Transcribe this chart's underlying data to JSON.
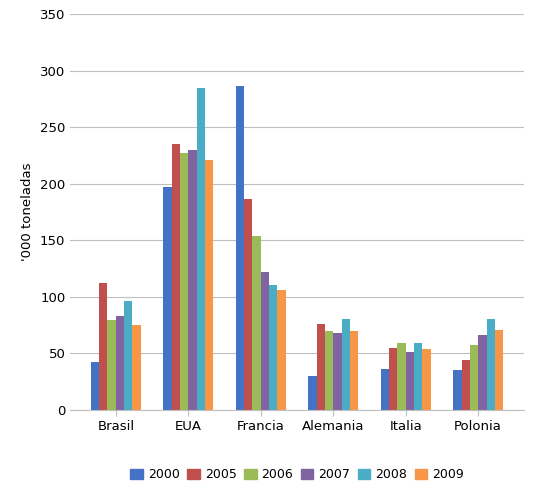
{
  "categories": [
    "Brasil",
    "EUA",
    "Francia",
    "Alemania",
    "Italia",
    "Polonia"
  ],
  "years": [
    "2000",
    "2005",
    "2006",
    "2007",
    "2008",
    "2009"
  ],
  "colors": [
    "#4472C4",
    "#C0504D",
    "#9BBB59",
    "#8064A2",
    "#4BACC6",
    "#F79646"
  ],
  "values": {
    "2000": [
      42,
      197,
      287,
      30,
      36,
      35
    ],
    "2005": [
      112,
      235,
      187,
      76,
      55,
      44
    ],
    "2006": [
      79,
      227,
      154,
      70,
      59,
      57
    ],
    "2007": [
      83,
      230,
      122,
      68,
      51,
      66
    ],
    "2008": [
      96,
      285,
      110,
      80,
      59,
      80
    ],
    "2009": [
      75,
      221,
      106,
      70,
      54,
      71
    ]
  },
  "ylabel": "'000 toneladas",
  "ylim": [
    0,
    350
  ],
  "yticks": [
    0,
    50,
    100,
    150,
    200,
    250,
    300,
    350
  ],
  "background_color": "#FFFFFF",
  "grid_color": "#BFBFBF",
  "legend_labels": [
    "2000",
    "2005",
    "2006",
    "2007",
    "2008",
    "2009"
  ]
}
